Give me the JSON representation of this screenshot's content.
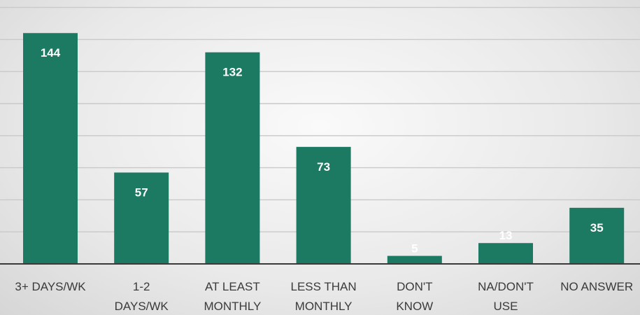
{
  "chart_data": {
    "type": "bar",
    "categories": [
      [
        "3+ DAYS/WK"
      ],
      [
        "1-2",
        "DAYS/WK"
      ],
      [
        "AT LEAST",
        "MONTHLY"
      ],
      [
        "LESS THAN",
        "MONTHLY"
      ],
      [
        "DON'T",
        "KNOW"
      ],
      [
        "NA/DON'T",
        "USE"
      ],
      [
        "NO ANSWER"
      ]
    ],
    "values": [
      144,
      57,
      132,
      73,
      5,
      13,
      35
    ],
    "data_labels": [
      "144",
      "57",
      "132",
      "73",
      "5",
      "13",
      "35"
    ],
    "title": "",
    "xlabel": "",
    "ylabel": "",
    "ylim": [
      0,
      160
    ],
    "grid": true,
    "legend": "none",
    "colors": {
      "bar": "#1d7a62",
      "data_label": "#ffffff",
      "tick_label": "#3a3a3a",
      "gridline": "#c9c9c9"
    }
  }
}
